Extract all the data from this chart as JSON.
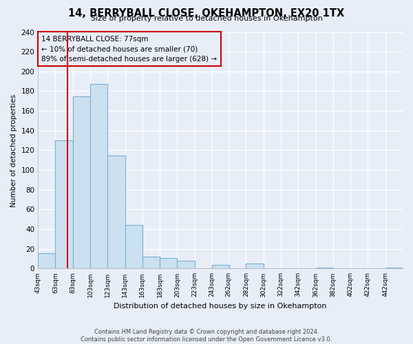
{
  "title": "14, BERRYBALL CLOSE, OKEHAMPTON, EX20 1TX",
  "subtitle": "Size of property relative to detached houses in Okehampton",
  "xlabel": "Distribution of detached houses by size in Okehampton",
  "ylabel": "Number of detached properties",
  "bin_edges": [
    43,
    63,
    83,
    103,
    123,
    143,
    163,
    183,
    203,
    223,
    243,
    262,
    282,
    302,
    322,
    342,
    362,
    382,
    402,
    422,
    442
  ],
  "bin_width": 20,
  "counts": [
    16,
    130,
    175,
    187,
    115,
    44,
    12,
    11,
    8,
    0,
    4,
    0,
    5,
    0,
    0,
    0,
    1,
    0,
    0,
    0,
    1
  ],
  "bar_color": "#cce0f0",
  "bar_edge_color": "#7ab0d4",
  "vline_x": 77,
  "vline_color": "#cc0000",
  "annotation_line1": "14 BERRYBALL CLOSE: 77sqm",
  "annotation_line2": "← 10% of detached houses are smaller (70)",
  "annotation_line3": "89% of semi-detached houses are larger (628) →",
  "annotation_box_edge_color": "#cc0000",
  "ylim": [
    0,
    240
  ],
  "yticks": [
    0,
    20,
    40,
    60,
    80,
    100,
    120,
    140,
    160,
    180,
    200,
    220,
    240
  ],
  "xlim_left": 43,
  "xlim_right": 462,
  "footer_line1": "Contains HM Land Registry data © Crown copyright and database right 2024.",
  "footer_line2": "Contains public sector information licensed under the Open Government Licence v3.0.",
  "background_color": "#e8eef8",
  "grid_color": "#ffffff"
}
